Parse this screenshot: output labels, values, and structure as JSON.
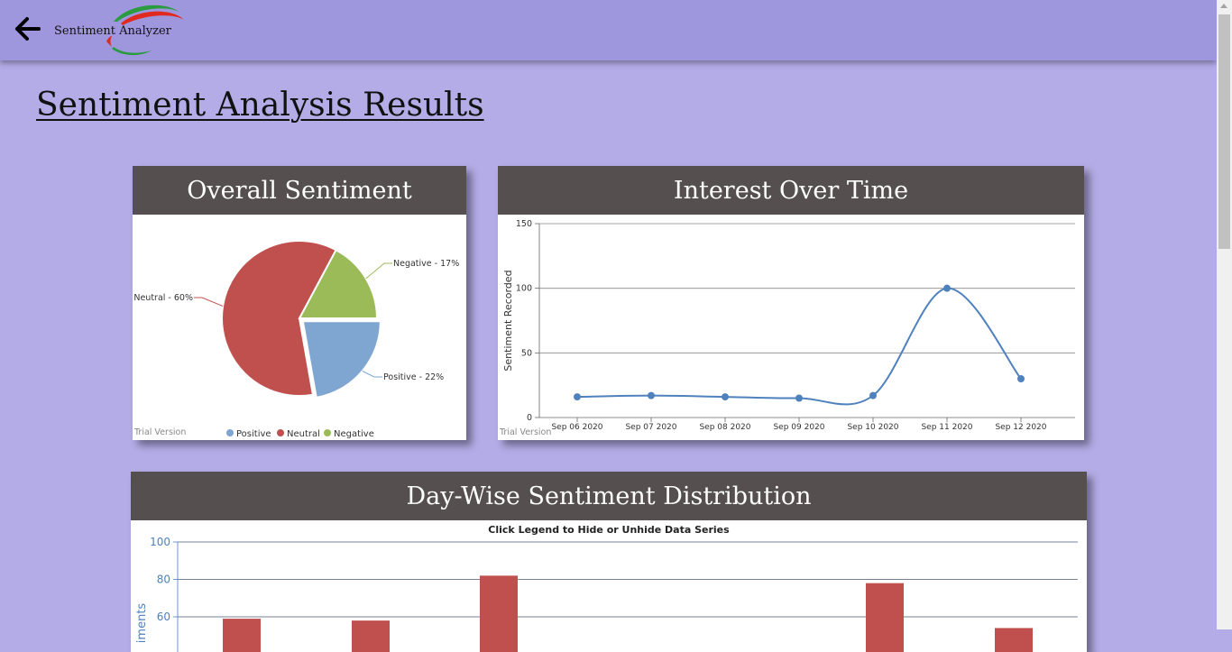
{
  "app": {
    "brand_name": "Sentiment Analyzer",
    "back_icon": "arrow-left-icon",
    "logo_icon": "swoosh-logo-icon"
  },
  "page": {
    "title": "Sentiment Analysis Results"
  },
  "overall": {
    "header": "Overall Sentiment",
    "trial": "Trial Version"
  },
  "interest": {
    "header": "Interest Over Time",
    "trial": "Trial Version"
  },
  "daywise": {
    "header": "Day-Wise Sentiment Distribution",
    "subtitle": "Click Legend to Hide or Unhide Data Series"
  },
  "colors": {
    "positive": "#7fa6d0",
    "neutral": "#c0504d",
    "negative": "#9bbb59",
    "line": "#4f81bd",
    "header_bg": "#554f4f",
    "topbar": "#9e97de",
    "background": "#b3ace6"
  },
  "chart_data": [
    {
      "type": "pie",
      "slices": [
        {
          "name": "Positive",
          "label": "Positive - 22%",
          "value": 22,
          "color": "#7fa6d0"
        },
        {
          "name": "Neutral",
          "label": "Neutral - 60%",
          "value": 60,
          "color": "#c0504d"
        },
        {
          "name": "Negative",
          "label": "Negative - 17%",
          "value": 17,
          "color": "#9bbb59"
        }
      ],
      "legend": [
        "Positive",
        "Neutral",
        "Negative"
      ],
      "legend_position": "bottom"
    },
    {
      "type": "line",
      "x": [
        "Sep 06 2020",
        "Sep 07 2020",
        "Sep 08 2020",
        "Sep 09 2020",
        "Sep 10 2020",
        "Sep 11 2020",
        "Sep 12 2020"
      ],
      "values": [
        16,
        17,
        16,
        15,
        17,
        100,
        30
      ],
      "ylabel": "Sentiment Recorded",
      "yticks": [
        0,
        50,
        100,
        150
      ],
      "ylim": [
        0,
        150
      ],
      "grid": true
    },
    {
      "type": "bar",
      "title": "Click Legend to Hide or Unhide Data Series",
      "ylabel": "iments",
      "yticks": [
        60,
        80,
        100
      ],
      "ylim_visible": [
        55,
        100
      ],
      "series": [
        {
          "values": [
            59,
            58,
            82,
            null,
            null,
            78,
            54
          ]
        }
      ],
      "grid": true
    }
  ]
}
